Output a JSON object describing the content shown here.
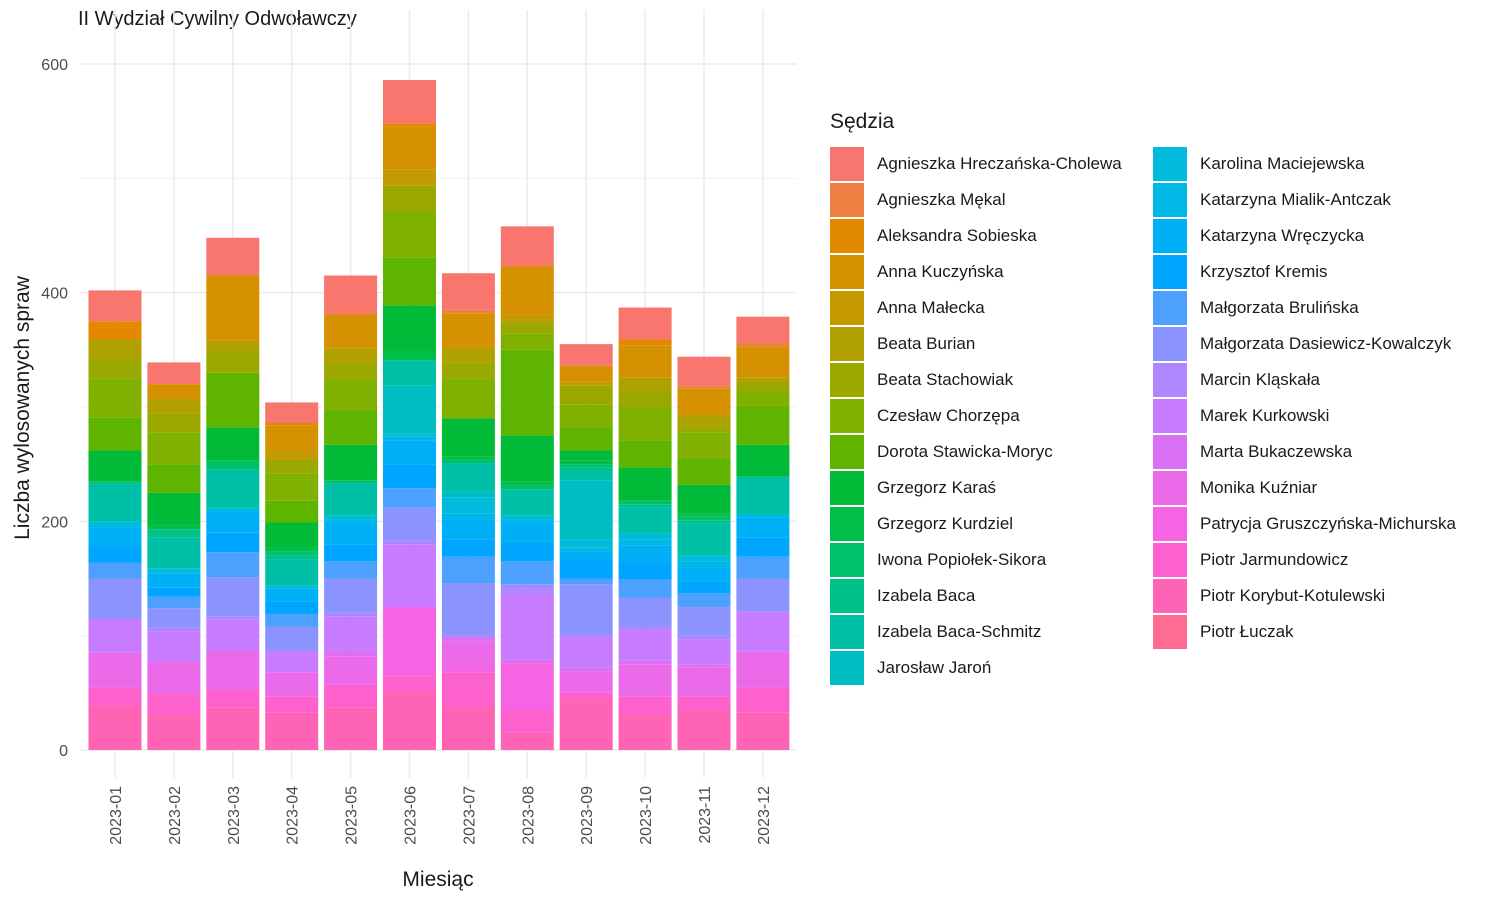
{
  "chart_data": {
    "type": "bar",
    "stacked": true,
    "title": "II Wydział Cywilny Odwoławczy",
    "xlabel": "Miesiąc",
    "ylabel": "Liczba wylosowanych spraw",
    "ylim": [
      0,
      600
    ],
    "yticks": [
      0,
      200,
      400,
      600
    ],
    "grid": true,
    "legend_position": "right",
    "legend_title": "Sędzia",
    "categories": [
      "2023-01",
      "2023-02",
      "2023-03",
      "2023-04",
      "2023-05",
      "2023-06",
      "2023-07",
      "2023-08",
      "2023-09",
      "2023-10",
      "2023-11",
      "2023-12"
    ],
    "series": [
      {
        "name": "Agnieszka Hreczańska-Cholewa",
        "color": "#F8766D",
        "values": [
          27,
          19,
          33,
          18,
          32,
          38,
          32,
          33,
          19,
          28,
          25,
          23
        ]
      },
      {
        "name": "Agnieszka Mękal",
        "color": "#EE8043",
        "values": [
          0,
          0,
          0,
          0,
          3,
          0,
          3,
          3,
          0,
          0,
          3,
          3
        ]
      },
      {
        "name": "Aleksandra Sobieska",
        "color": "#E38900",
        "values": [
          16,
          0,
          0,
          2,
          0,
          3,
          0,
          0,
          0,
          5,
          0,
          0
        ]
      },
      {
        "name": "Anna Kuczyńska",
        "color": "#D59100",
        "values": [
          0,
          13,
          57,
          22,
          29,
          37,
          30,
          41,
          14,
          28,
          23,
          27
        ]
      },
      {
        "name": "Anna Małecka",
        "color": "#C49A00",
        "values": [
          0,
          0,
          0,
          8,
          0,
          14,
          0,
          5,
          3,
          0,
          0,
          0
        ]
      },
      {
        "name": "Beata Burian",
        "color": "#B0A000",
        "values": [
          17,
          13,
          9,
          0,
          13,
          0,
          13,
          3,
          0,
          12,
          10,
          5
        ]
      },
      {
        "name": "Beata Stachowiak",
        "color": "#9AA800",
        "values": [
          17,
          16,
          19,
          12,
          14,
          23,
          14,
          9,
          17,
          14,
          5,
          7
        ]
      },
      {
        "name": "Czesław Chorzępa",
        "color": "#80B000",
        "values": [
          34,
          28,
          0,
          24,
          27,
          40,
          35,
          14,
          20,
          29,
          23,
          14
        ]
      },
      {
        "name": "Dorota Stawicka-Moryc",
        "color": "#5FB400",
        "values": [
          29,
          25,
          48,
          19,
          30,
          42,
          0,
          75,
          20,
          24,
          23,
          33
        ]
      },
      {
        "name": "Grzegorz Karaś",
        "color": "#00BA38",
        "values": [
          27,
          29,
          29,
          21,
          31,
          40,
          33,
          40,
          9,
          29,
          25,
          28
        ]
      },
      {
        "name": "Grzegorz Kurdziel",
        "color": "#00BE47",
        "values": [
          0,
          3,
          0,
          4,
          0,
          8,
          3,
          4,
          3,
          0,
          3,
          0
        ]
      },
      {
        "name": "Iwona Popiołek-Sikora",
        "color": "#00C16B",
        "values": [
          2,
          0,
          8,
          4,
          3,
          0,
          3,
          3,
          3,
          3,
          3,
          0
        ]
      },
      {
        "name": "Izabela Baca",
        "color": "#00C18A",
        "values": [
          0,
          7,
          0,
          3,
          0,
          0,
          0,
          0,
          3,
          3,
          3,
          0
        ]
      },
      {
        "name": "Izabela Baca-Schmitz",
        "color": "#00BFA7",
        "values": [
          33,
          27,
          33,
          23,
          28,
          22,
          25,
          23,
          8,
          23,
          28,
          33
        ]
      },
      {
        "name": "Jarosław Jaroń",
        "color": "#00BCC3",
        "values": [
          0,
          0,
          0,
          0,
          0,
          42,
          5,
          0,
          52,
          0,
          0,
          0
        ]
      },
      {
        "name": "Karolina Maciejewska",
        "color": "#00BBDB",
        "values": [
          5,
          5,
          3,
          3,
          3,
          3,
          14,
          3,
          7,
          5,
          5,
          0
        ]
      },
      {
        "name": "Katarzyna Mialik-Antczak",
        "color": "#00B8E5",
        "values": [
          0,
          0,
          0,
          0,
          3,
          3,
          5,
          3,
          3,
          5,
          5,
          3
        ]
      },
      {
        "name": "Katarzyna Wręczycka",
        "color": "#00B0F6",
        "values": [
          17,
          12,
          19,
          11,
          19,
          21,
          18,
          17,
          7,
          15,
          13,
          17
        ]
      },
      {
        "name": "Krzysztof Kremis",
        "color": "#00A5FF",
        "values": [
          14,
          8,
          17,
          11,
          15,
          21,
          15,
          17,
          17,
          15,
          10,
          17
        ]
      },
      {
        "name": "Małgorzata Brulińska",
        "color": "#4EA0FF",
        "values": [
          14,
          10,
          22,
          11,
          15,
          17,
          23,
          20,
          5,
          16,
          12,
          19
        ]
      },
      {
        "name": "Małgorzata Dasiewicz-Kowalczyk",
        "color": "#8B93FF",
        "values": [
          35,
          17,
          34,
          21,
          30,
          29,
          45,
          2,
          44,
          25,
          25,
          29
        ]
      },
      {
        "name": "Marcin Kląskała",
        "color": "#AE87FF",
        "values": [
          0,
          3,
          3,
          0,
          3,
          3,
          3,
          7,
          3,
          3,
          3,
          0
        ]
      },
      {
        "name": "Marek Kurkowski",
        "color": "#C77CFF",
        "values": [
          30,
          27,
          27,
          19,
          30,
          55,
          0,
          57,
          26,
          27,
          22,
          35
        ]
      },
      {
        "name": "Marta Bukaczewska",
        "color": "#DA71F5",
        "values": [
          0,
          0,
          0,
          0,
          5,
          0,
          3,
          3,
          3,
          3,
          3,
          0
        ]
      },
      {
        "name": "Monika Kuźniar",
        "color": "#EA6AEA",
        "values": [
          30,
          28,
          34,
          21,
          25,
          0,
          22,
          0,
          19,
          28,
          25,
          31
        ]
      },
      {
        "name": "Patrycja Gruszczyńska-Michurska",
        "color": "#F564E3",
        "values": [
          0,
          0,
          0,
          0,
          0,
          61,
          5,
          41,
          0,
          0,
          0,
          0
        ]
      },
      {
        "name": "Piotr Jarmundowicz",
        "color": "#FC61CE",
        "values": [
          16,
          18,
          16,
          14,
          20,
          12,
          30,
          20,
          5,
          16,
          12,
          22
        ]
      },
      {
        "name": "Piotr Korybut-Kotulewski",
        "color": "#FF63B6",
        "values": [
          39,
          31,
          37,
          33,
          37,
          52,
          38,
          15,
          45,
          31,
          35,
          33
        ]
      },
      {
        "name": "Piotr Łuczak",
        "color": "#FF6C91",
        "values": [
          0,
          0,
          0,
          0,
          0,
          0,
          0,
          0,
          0,
          0,
          0,
          0
        ]
      }
    ]
  }
}
